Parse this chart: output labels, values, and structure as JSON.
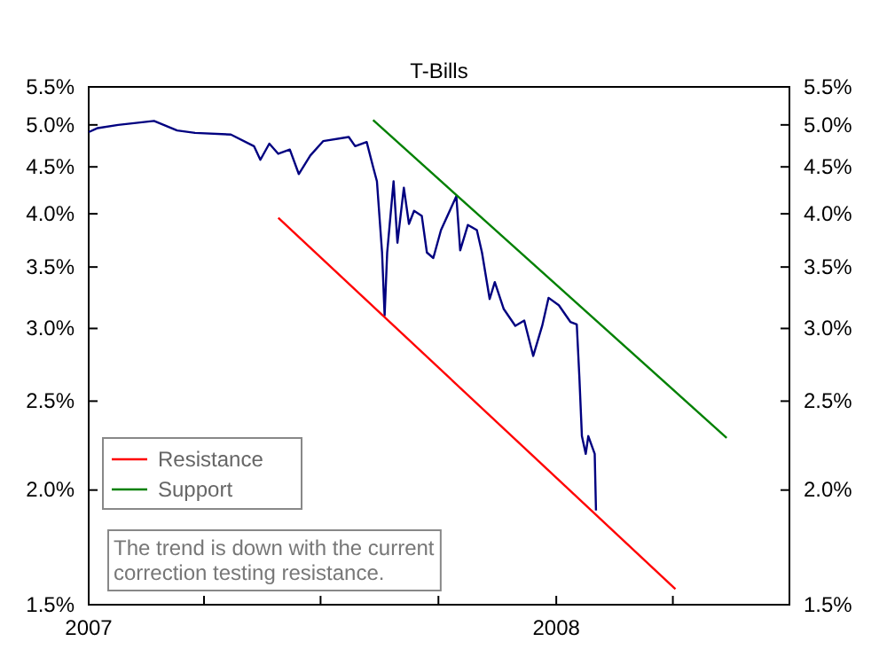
{
  "chart_data": {
    "type": "line",
    "title": "T-Bills",
    "annotations": [
      "The trend is down with the current correction testing resistance."
    ],
    "xlim": [
      "2007-01-01",
      "2008-07-01"
    ],
    "xticks": [
      {
        "value": "2007-01-01",
        "label": "2007"
      },
      {
        "value": "2007-04-01",
        "label": null
      },
      {
        "value": "2007-07-01",
        "label": null
      },
      {
        "value": "2007-10-01",
        "label": null
      },
      {
        "value": "2008-01-01",
        "label": "2008"
      },
      {
        "value": "2008-04-01",
        "label": null
      },
      {
        "value": "2008-07-01",
        "label": null
      }
    ],
    "log": true,
    "ylim": [
      1.5,
      5.5
    ],
    "yticks": [
      {
        "value": 1.5,
        "label": "1.5%"
      },
      {
        "value": 2,
        "label": "2.0%"
      },
      {
        "value": 2.5,
        "label": "2.5%"
      },
      {
        "value": 3,
        "label": "3.0%"
      },
      {
        "value": 3.5,
        "label": "3.5%"
      },
      {
        "value": 4,
        "label": "4.0%"
      },
      {
        "value": 4.5,
        "label": "4.5%"
      },
      {
        "value": 5,
        "label": "5.0%"
      },
      {
        "value": 5.5,
        "label": "5.5%"
      }
    ],
    "grid": false,
    "legend": "bottom left",
    "marker": "none",
    "line_style": "solid",
    "series": [
      {
        "color": "#000080",
        "x": [
          "2007-01-01",
          "2007-01-08",
          "2007-01-24",
          "2007-02-21",
          "2007-03-11",
          "2007-03-25",
          "2007-04-22",
          "2007-05-10",
          "2007-05-15",
          "2007-05-22",
          "2007-05-29",
          "2007-06-07",
          "2007-06-14",
          "2007-06-23",
          "2007-07-03",
          "2007-07-23",
          "2007-07-28",
          "2007-08-06",
          "2007-08-11",
          "2007-08-14",
          "2007-08-18",
          "2007-08-20",
          "2007-08-22",
          "2007-08-27",
          "2007-08-30",
          "2007-09-04",
          "2007-09-08",
          "2007-09-12",
          "2007-09-18",
          "2007-09-22",
          "2007-09-27",
          "2007-10-03",
          "2007-10-15",
          "2007-10-18",
          "2007-10-24",
          "2007-10-31",
          "2007-11-04",
          "2007-11-10",
          "2007-11-14",
          "2007-11-21",
          "2007-11-30",
          "2007-12-07",
          "2007-12-14",
          "2007-12-21",
          "2007-12-26",
          "2008-01-03",
          "2008-01-12",
          "2008-01-17",
          "2008-01-19",
          "2008-01-21",
          "2008-01-24",
          "2008-01-26",
          "2008-01-31",
          "2008-02-01"
        ],
        "values": [
          4.91,
          4.96,
          5.0,
          5.05,
          4.93,
          4.9,
          4.88,
          4.74,
          4.58,
          4.77,
          4.65,
          4.7,
          4.42,
          4.63,
          4.8,
          4.85,
          4.74,
          4.79,
          4.5,
          4.34,
          3.63,
          3.1,
          3.63,
          4.34,
          3.72,
          4.27,
          3.9,
          4.03,
          3.98,
          3.63,
          3.58,
          3.84,
          4.18,
          3.65,
          3.89,
          3.84,
          3.63,
          3.23,
          3.37,
          3.15,
          3.02,
          3.06,
          2.8,
          3.02,
          3.24,
          3.18,
          3.05,
          3.03,
          2.66,
          2.29,
          2.19,
          2.29,
          2.19,
          1.9
        ]
      },
      {
        "name": "Resistance",
        "color": "#ff0000",
        "x": [
          "2007-05-29",
          "2008-04-03"
        ],
        "values": [
          3.96,
          1.56
        ]
      },
      {
        "name": "Support",
        "color": "#008000",
        "x": [
          "2007-08-11",
          "2008-05-13"
        ],
        "values": [
          5.06,
          2.28
        ]
      }
    ]
  }
}
